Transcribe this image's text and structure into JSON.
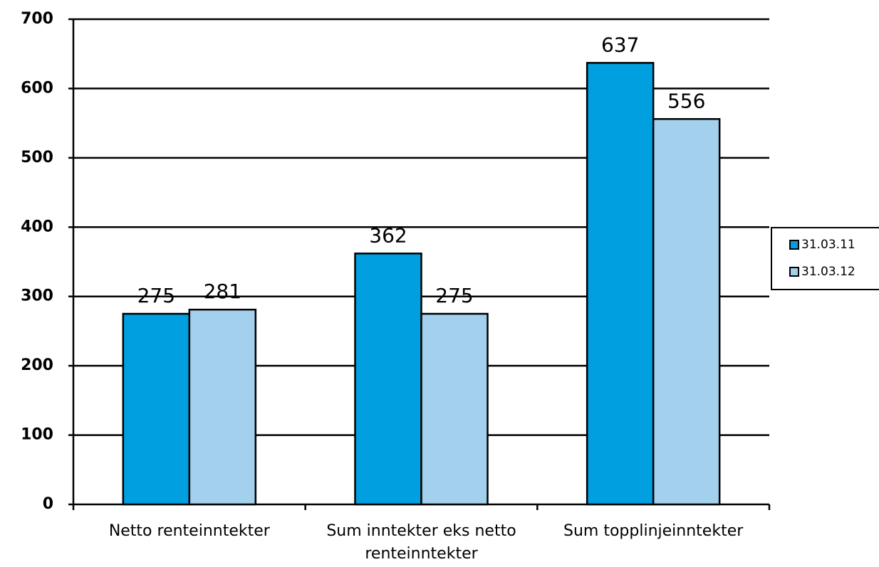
{
  "chart_data": {
    "type": "bar",
    "categories": [
      "Netto renteinntekter",
      "Sum inntekter eks netto renteinntekter",
      "Sum topplinjeinntekter"
    ],
    "series": [
      {
        "name": "31.03.11",
        "color": "#00a0e0",
        "values": [
          275,
          362,
          637
        ]
      },
      {
        "name": "31.03.12",
        "color": "#a3d0ec",
        "values": [
          281,
          275,
          556
        ]
      }
    ],
    "ylim": [
      0,
      700
    ],
    "yticks": [
      0,
      100,
      200,
      300,
      400,
      500,
      600,
      700
    ],
    "grid": true,
    "legend": "right"
  }
}
